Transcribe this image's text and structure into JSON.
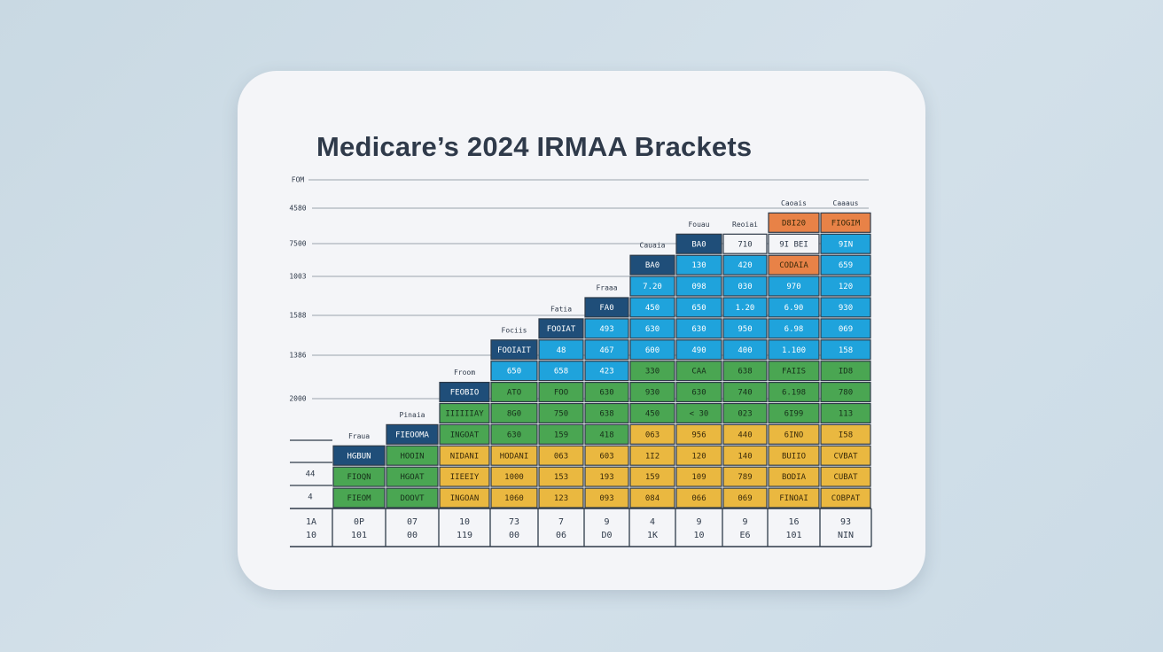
{
  "chart_data": {
    "type": "table",
    "title": "Medicare’s 2024 IRMAA Brackets",
    "y_tick_labels": [
      "FOM",
      "4580",
      "7500",
      "1003",
      "1588",
      "1386",
      "2000",
      "44",
      "4"
    ],
    "bottom_row_1": [
      "1A",
      "0P",
      "07",
      "10",
      "73",
      "7",
      "9",
      "4",
      "9",
      "9",
      "16",
      "93"
    ],
    "bottom_row_2": [
      "10",
      "101",
      "00",
      "119",
      "00",
      "06",
      "D0",
      "1K",
      "10",
      "E6",
      "101",
      "NIN"
    ],
    "column_header_labels": [
      "Fraua",
      "Pinaia",
      "Froom",
      "Fociis",
      "Fatia",
      "Fraaa",
      "Cauaia",
      "Fouau",
      "Reoiai",
      "Caoais",
      "Caaaus"
    ],
    "columns": [
      {
        "cells": [
          {
            "text": "HGBUN",
            "color": "navy"
          },
          {
            "text": "FIOQN",
            "color": "green"
          },
          {
            "text": "FIEOM",
            "color": "green"
          }
        ]
      },
      {
        "cells": [
          {
            "text": "FIEOOMA",
            "color": "navy"
          },
          {
            "text": "HOOIN",
            "color": "green"
          },
          {
            "text": "HGOAT",
            "color": "green"
          },
          {
            "text": "DOOVT",
            "color": "green"
          }
        ]
      },
      {
        "cells": [
          {
            "text": "FEOBIO",
            "color": "navy"
          },
          {
            "text": "IIIIIIAY",
            "color": "green"
          },
          {
            "text": "INGOAT",
            "color": "green"
          },
          {
            "text": "NIDANI",
            "color": "yellow"
          },
          {
            "text": "IIEEIY",
            "color": "yellow"
          },
          {
            "text": "INGOAN",
            "color": "yellow"
          }
        ]
      },
      {
        "cells": [
          {
            "text": "FOOIAIT",
            "color": "navy"
          },
          {
            "text": "650",
            "color": "blue"
          },
          {
            "text": "ATO",
            "color": "green"
          },
          {
            "text": "8G0",
            "color": "green"
          },
          {
            "text": "630",
            "color": "green"
          },
          {
            "text": "HODANI",
            "color": "yellow"
          },
          {
            "text": "1000",
            "color": "yellow"
          },
          {
            "text": "1060",
            "color": "yellow"
          }
        ]
      },
      {
        "cells": [
          {
            "text": "FOOIAT",
            "color": "navy"
          },
          {
            "text": "48",
            "color": "blue"
          },
          {
            "text": "658",
            "color": "blue"
          },
          {
            "text": "FOO",
            "color": "green"
          },
          {
            "text": "750",
            "color": "green"
          },
          {
            "text": "159",
            "color": "green"
          },
          {
            "text": "063",
            "color": "yellow"
          },
          {
            "text": "153",
            "color": "yellow"
          },
          {
            "text": "123",
            "color": "yellow"
          }
        ]
      },
      {
        "cells": [
          {
            "text": "FA0",
            "color": "navy"
          },
          {
            "text": "493",
            "color": "blue"
          },
          {
            "text": "467",
            "color": "blue"
          },
          {
            "text": "423",
            "color": "blue"
          },
          {
            "text": "630",
            "color": "green"
          },
          {
            "text": "638",
            "color": "green"
          },
          {
            "text": "418",
            "color": "green"
          },
          {
            "text": "603",
            "color": "yellow"
          },
          {
            "text": "193",
            "color": "yellow"
          },
          {
            "text": "093",
            "color": "yellow"
          }
        ]
      },
      {
        "cells": [
          {
            "text": "BA0",
            "color": "navy"
          },
          {
            "text": "7.20",
            "color": "blue"
          },
          {
            "text": "450",
            "color": "blue"
          },
          {
            "text": "630",
            "color": "blue"
          },
          {
            "text": "600",
            "color": "blue"
          },
          {
            "text": "330",
            "color": "green"
          },
          {
            "text": "930",
            "color": "green"
          },
          {
            "text": "450",
            "color": "green"
          },
          {
            "text": "063",
            "color": "yellow"
          },
          {
            "text": "1I2",
            "color": "yellow"
          },
          {
            "text": "159",
            "color": "yellow"
          },
          {
            "text": "084",
            "color": "yellow"
          }
        ]
      },
      {
        "cells": [
          {
            "text": "BA0",
            "color": "navy"
          },
          {
            "text": "130",
            "color": "blue"
          },
          {
            "text": "098",
            "color": "blue"
          },
          {
            "text": "650",
            "color": "blue"
          },
          {
            "text": "630",
            "color": "blue"
          },
          {
            "text": "490",
            "color": "blue"
          },
          {
            "text": "CAA",
            "color": "green"
          },
          {
            "text": "630",
            "color": "green"
          },
          {
            "text": "< 30",
            "color": "green"
          },
          {
            "text": "956",
            "color": "yellow"
          },
          {
            "text": "120",
            "color": "yellow"
          },
          {
            "text": "109",
            "color": "yellow"
          },
          {
            "text": "066",
            "color": "yellow"
          }
        ]
      },
      {
        "cells": [
          {
            "text": "710",
            "color": "white"
          },
          {
            "text": "420",
            "color": "blue"
          },
          {
            "text": "030",
            "color": "blue"
          },
          {
            "text": "1.20",
            "color": "blue"
          },
          {
            "text": "950",
            "color": "blue"
          },
          {
            "text": "400",
            "color": "blue"
          },
          {
            "text": "638",
            "color": "green"
          },
          {
            "text": "740",
            "color": "green"
          },
          {
            "text": "023",
            "color": "green"
          },
          {
            "text": "440",
            "color": "yellow"
          },
          {
            "text": "140",
            "color": "yellow"
          },
          {
            "text": "789",
            "color": "yellow"
          },
          {
            "text": "069",
            "color": "yellow"
          }
        ]
      },
      {
        "cells": [
          {
            "text": "D8I20",
            "color": "orange"
          },
          {
            "text": "9I BEI",
            "color": "white"
          },
          {
            "text": "CODAIA",
            "color": "orange"
          },
          {
            "text": "970",
            "color": "blue"
          },
          {
            "text": "6.90",
            "color": "blue"
          },
          {
            "text": "6.98",
            "color": "blue"
          },
          {
            "text": "1.100",
            "color": "blue"
          },
          {
            "text": "FAIIS",
            "color": "green"
          },
          {
            "text": "6.198",
            "color": "green"
          },
          {
            "text": "6I99",
            "color": "green"
          },
          {
            "text": "6INO",
            "color": "yellow"
          },
          {
            "text": "BUIIO",
            "color": "yellow"
          },
          {
            "text": "BODIA",
            "color": "yellow"
          },
          {
            "text": "FINOAI",
            "color": "yellow"
          }
        ]
      },
      {
        "cells": [
          {
            "text": "FIOGIM",
            "color": "orange"
          },
          {
            "text": "9IN",
            "color": "blue"
          },
          {
            "text": "659",
            "color": "blue"
          },
          {
            "text": "120",
            "color": "blue"
          },
          {
            "text": "930",
            "color": "blue"
          },
          {
            "text": "069",
            "color": "blue"
          },
          {
            "text": "158",
            "color": "blue"
          },
          {
            "text": "ID8",
            "color": "green"
          },
          {
            "text": "780",
            "color": "green"
          },
          {
            "text": "113",
            "color": "green"
          },
          {
            "text": "I58",
            "color": "yellow"
          },
          {
            "text": "CVBAT",
            "color": "yellow"
          },
          {
            "text": "CUBAT",
            "color": "yellow"
          },
          {
            "text": "COBPAT",
            "color": "yellow"
          }
        ]
      }
    ],
    "colors": {
      "navy": "#1f4e79",
      "blue": "#1fa3dc",
      "green": "#4aa652",
      "yellow": "#eab840",
      "orange": "#e88247",
      "white": "#f4f5f8",
      "grid": "#2e3a48",
      "text": "#2f3a4a"
    },
    "legend": "none"
  }
}
